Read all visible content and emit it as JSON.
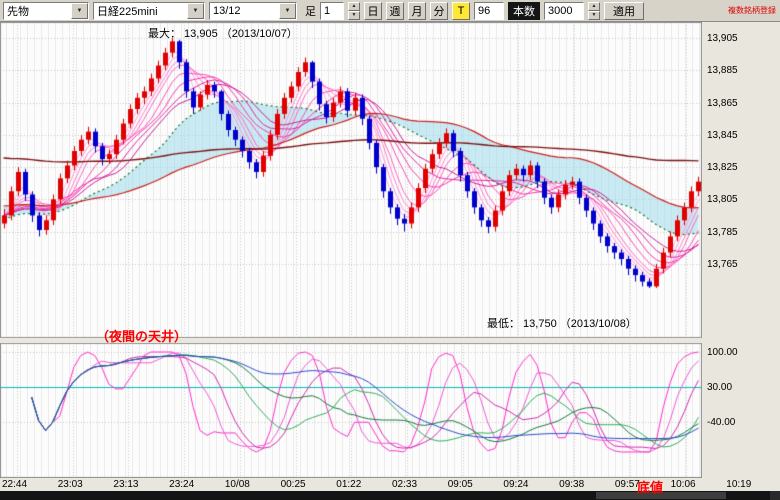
{
  "toolbar": {
    "category_select": "先物",
    "symbol_select": "日経225mini",
    "contract_select": "13/12",
    "ashi_label": "足",
    "interval_value": "1",
    "period_day": "日",
    "period_week": "週",
    "period_month": "月",
    "period_minute": "分",
    "tick_button": "T",
    "period_count": "96",
    "bars_label": "本数",
    "bars_value": "3000",
    "apply_button": "適用",
    "note_right": "複数銘柄登録"
  },
  "annotations": {
    "max_label": "最大： 13,905 （2013/10/07）",
    "min_label": "最低： 13,750 （2013/10/08）",
    "ceiling_label": "（夜間の天井）",
    "bottom_label": "底値"
  },
  "chart_data": {
    "type": "candlestick_with_oscillator",
    "x_labels": [
      "22:44",
      "23:03",
      "23:13",
      "23:24",
      "10/08",
      "00:25",
      "01:22",
      "02:33",
      "09:05",
      "09:24",
      "09:38",
      "09:57",
      "10:06",
      "10:19"
    ],
    "price_axis": {
      "labels": [
        "13,905",
        "13,885",
        "13,865",
        "13,845",
        "13,825",
        "13,805",
        "13,785",
        "13,765"
      ],
      "values": [
        13905,
        13885,
        13865,
        13845,
        13825,
        13805,
        13785,
        13765
      ],
      "range": [
        13719,
        13915
      ]
    },
    "osc_axis": {
      "labels": [
        "100.00",
        "30.00",
        "-40.00"
      ],
      "values": [
        100,
        30,
        -40
      ],
      "range": [
        -152,
        118
      ]
    },
    "high_point": {
      "price": 13905,
      "date": "2013/10/07"
    },
    "low_point": {
      "price": 13750,
      "date": "2013/10/08"
    },
    "candles": [
      [
        13790,
        13799,
        13787,
        13795
      ],
      [
        13795,
        13813,
        13792,
        13810
      ],
      [
        13810,
        13825,
        13807,
        13822
      ],
      [
        13822,
        13824,
        13804,
        13808
      ],
      [
        13808,
        13810,
        13791,
        13795
      ],
      [
        13795,
        13797,
        13782,
        13786
      ],
      [
        13786,
        13795,
        13783,
        13792
      ],
      [
        13792,
        13808,
        13789,
        13805
      ],
      [
        13805,
        13821,
        13802,
        13818
      ],
      [
        13818,
        13829,
        13815,
        13826
      ],
      [
        13826,
        13838,
        13823,
        13835
      ],
      [
        13835,
        13845,
        13832,
        13842
      ],
      [
        13842,
        13850,
        13839,
        13847
      ],
      [
        13847,
        13849,
        13834,
        13838
      ],
      [
        13838,
        13840,
        13826,
        13830
      ],
      [
        13830,
        13836,
        13827,
        13833
      ],
      [
        13833,
        13845,
        13830,
        13842
      ],
      [
        13842,
        13855,
        13839,
        13852
      ],
      [
        13852,
        13864,
        13849,
        13861
      ],
      [
        13861,
        13871,
        13858,
        13868
      ],
      [
        13868,
        13875,
        13864,
        13872
      ],
      [
        13872,
        13883,
        13869,
        13880
      ],
      [
        13880,
        13891,
        13877,
        13888
      ],
      [
        13888,
        13899,
        13885,
        13896
      ],
      [
        13896,
        13905,
        13893,
        13903
      ],
      [
        13903,
        13904,
        13886,
        13890
      ],
      [
        13890,
        13892,
        13868,
        13872
      ],
      [
        13872,
        13874,
        13858,
        13862
      ],
      [
        13862,
        13872,
        13860,
        13870
      ],
      [
        13870,
        13879,
        13867,
        13876
      ],
      [
        13876,
        13878,
        13868,
        13872
      ],
      [
        13872,
        13873,
        13854,
        13858
      ],
      [
        13858,
        13860,
        13844,
        13848
      ],
      [
        13848,
        13850,
        13838,
        13842
      ],
      [
        13842,
        13844,
        13831,
        13835
      ],
      [
        13835,
        13837,
        13824,
        13828
      ],
      [
        13828,
        13830,
        13818,
        13822
      ],
      [
        13822,
        13835,
        13819,
        13832
      ],
      [
        13832,
        13848,
        13829,
        13845
      ],
      [
        13845,
        13861,
        13842,
        13858
      ],
      [
        13858,
        13871,
        13855,
        13868
      ],
      [
        13868,
        13878,
        13865,
        13875
      ],
      [
        13875,
        13887,
        13872,
        13884
      ],
      [
        13884,
        13893,
        13881,
        13890
      ],
      [
        13890,
        13891,
        13874,
        13878
      ],
      [
        13878,
        13880,
        13860,
        13864
      ],
      [
        13864,
        13866,
        13852,
        13856
      ],
      [
        13856,
        13868,
        13853,
        13865
      ],
      [
        13865,
        13875,
        13862,
        13872
      ],
      [
        13872,
        13874,
        13856,
        13860
      ],
      [
        13860,
        13871,
        13857,
        13868
      ],
      [
        13868,
        13870,
        13851,
        13855
      ],
      [
        13855,
        13857,
        13836,
        13840
      ],
      [
        13840,
        13842,
        13821,
        13825
      ],
      [
        13825,
        13827,
        13806,
        13810
      ],
      [
        13810,
        13812,
        13796,
        13800
      ],
      [
        13800,
        13802,
        13789,
        13793
      ],
      [
        13793,
        13796,
        13785,
        13790
      ],
      [
        13790,
        13803,
        13787,
        13800
      ],
      [
        13800,
        13815,
        13797,
        13812
      ],
      [
        13812,
        13827,
        13809,
        13824
      ],
      [
        13824,
        13836,
        13821,
        13833
      ],
      [
        13833,
        13843,
        13830,
        13840
      ],
      [
        13840,
        13849,
        13837,
        13846
      ],
      [
        13846,
        13848,
        13831,
        13835
      ],
      [
        13835,
        13837,
        13816,
        13820
      ],
      [
        13820,
        13822,
        13806,
        13810
      ],
      [
        13810,
        13812,
        13796,
        13800
      ],
      [
        13800,
        13802,
        13788,
        13792
      ],
      [
        13792,
        13794,
        13784,
        13788
      ],
      [
        13788,
        13801,
        13785,
        13798
      ],
      [
        13798,
        13813,
        13795,
        13810
      ],
      [
        13810,
        13823,
        13807,
        13820
      ],
      [
        13820,
        13827,
        13817,
        13824
      ],
      [
        13824,
        13826,
        13816,
        13820
      ],
      [
        13820,
        13829,
        13817,
        13826
      ],
      [
        13826,
        13828,
        13812,
        13816
      ],
      [
        13816,
        13818,
        13802,
        13806
      ],
      [
        13806,
        13808,
        13796,
        13800
      ],
      [
        13800,
        13811,
        13797,
        13808
      ],
      [
        13808,
        13817,
        13805,
        13814
      ],
      [
        13814,
        13819,
        13811,
        13816
      ],
      [
        13816,
        13818,
        13802,
        13806
      ],
      [
        13806,
        13808,
        13794,
        13798
      ],
      [
        13798,
        13800,
        13786,
        13790
      ],
      [
        13790,
        13792,
        13778,
        13782
      ],
      [
        13782,
        13784,
        13772,
        13776
      ],
      [
        13776,
        13778,
        13768,
        13772
      ],
      [
        13772,
        13774,
        13764,
        13768
      ],
      [
        13768,
        13770,
        13758,
        13762
      ],
      [
        13762,
        13764,
        13754,
        13758
      ],
      [
        13758,
        13760,
        13751,
        13754
      ],
      [
        13754,
        13756,
        13750,
        13751
      ],
      [
        13751,
        13765,
        13750,
        13762
      ],
      [
        13762,
        13775,
        13759,
        13772
      ],
      [
        13772,
        13785,
        13769,
        13782
      ],
      [
        13782,
        13795,
        13779,
        13792
      ],
      [
        13792,
        13803,
        13789,
        13800
      ],
      [
        13800,
        13813,
        13797,
        13810
      ],
      [
        13810,
        13819,
        13807,
        13816
      ]
    ],
    "overlays": {
      "ribbon_periods": [
        3,
        4,
        5,
        6,
        8,
        10,
        12,
        14
      ],
      "ribbon_colors": [
        "#ffb3e0",
        "#ff99d6",
        "#ff80cc",
        "#ff66c2",
        "#ff4db8",
        "#f23aae",
        "#e028a3",
        "#cc1f97"
      ],
      "green_ma": {
        "period": 20,
        "color": "#1b7a33",
        "seed": 13793
      },
      "red_ma": {
        "period": 45,
        "color": "#cc2222",
        "seed": 13801
      },
      "long_ma": {
        "period": 90,
        "color": "#7a1212",
        "seed": 13831
      },
      "cloud_color": "rgba(150,216,232,0.5)"
    },
    "oscillators": {
      "kind": "RCI",
      "series": [
        {
          "period": 8,
          "color": "#ff2ecc"
        },
        {
          "period": 12,
          "color": "#f05ad2"
        },
        {
          "period": 16,
          "color": "#d22bb0"
        },
        {
          "period": 24,
          "color": "#2fae5a"
        },
        {
          "period": 32,
          "color": "#157a3c"
        },
        {
          "period": 48,
          "color": "#2b4fc8"
        }
      ]
    },
    "colors": {
      "up": "#e00000",
      "down": "#0000cc",
      "grid": "#c9c9c9",
      "cyan_line": "#00bcbc",
      "border": "#8a8a8a"
    }
  }
}
